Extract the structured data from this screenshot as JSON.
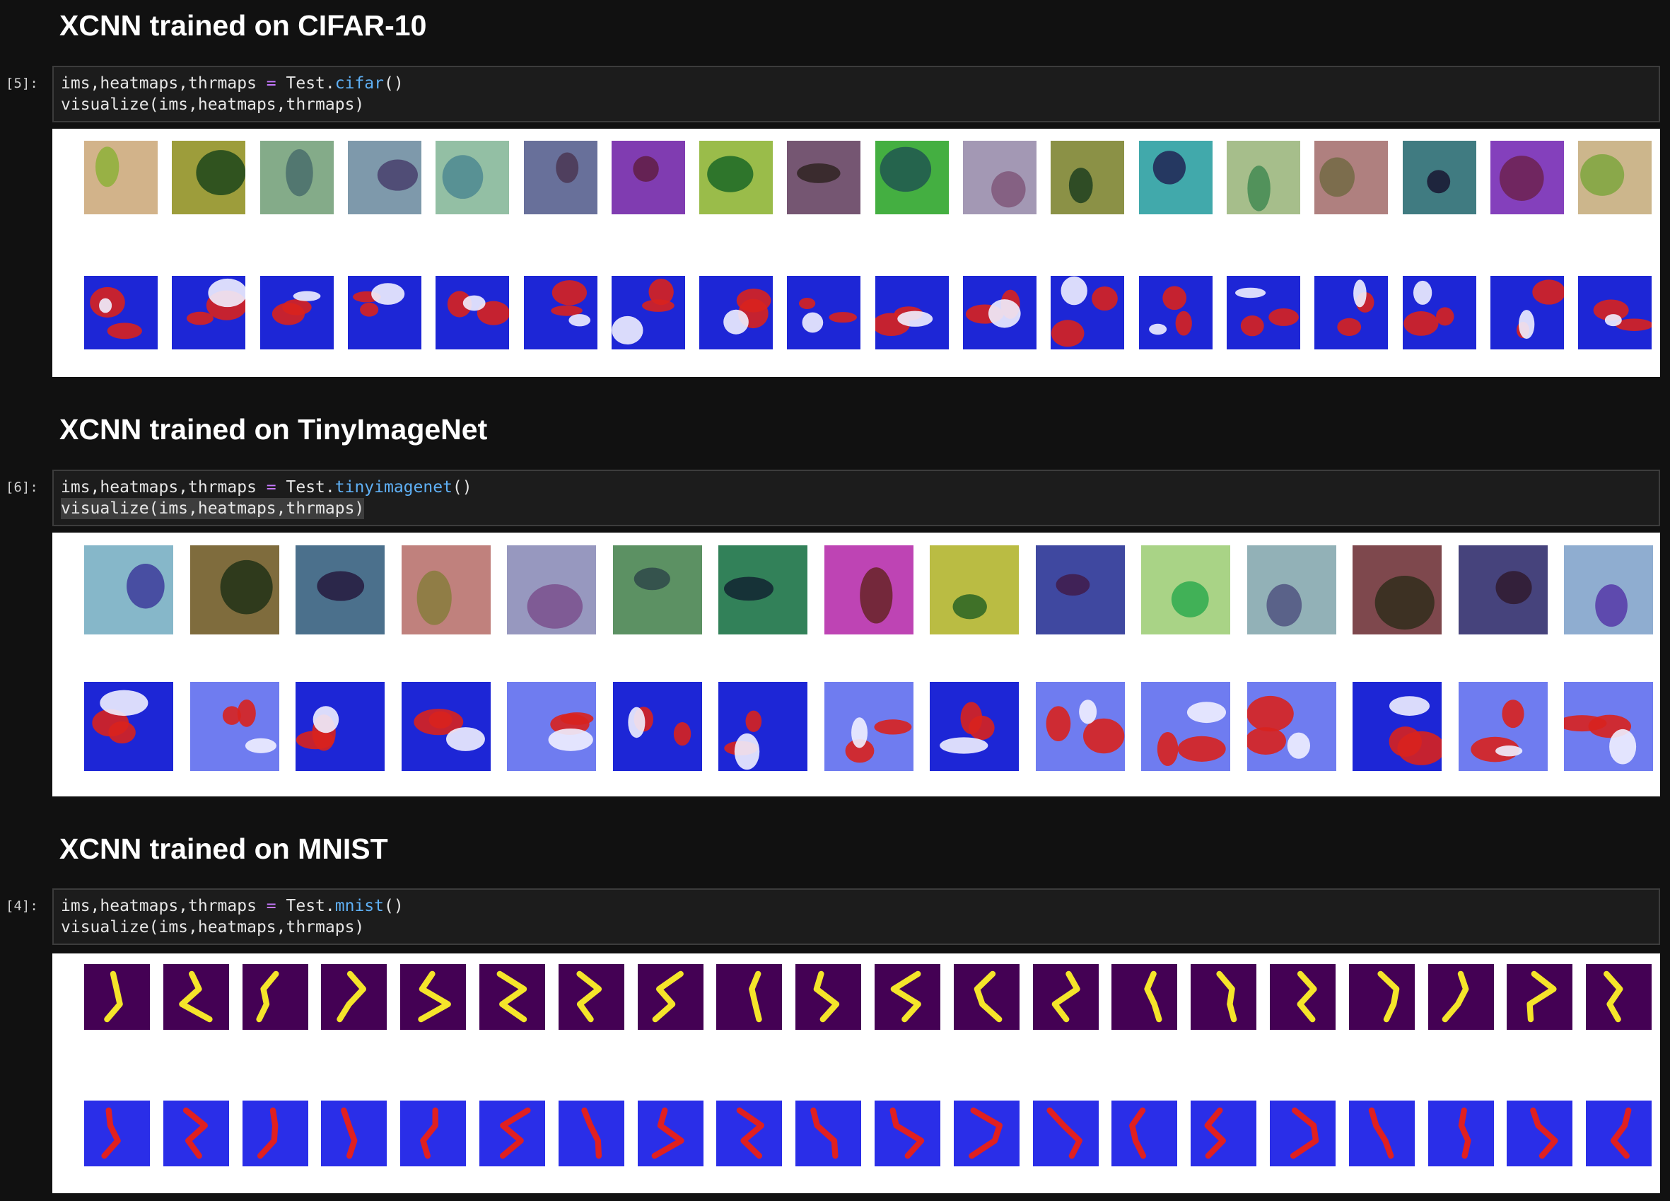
{
  "cells": [
    {
      "heading": "XCNN trained on CIFAR-10",
      "prompt": "[5]:",
      "code": [
        [
          "ims,heatmaps,thrmaps ",
          "=",
          " Test.",
          "cifar",
          "()"
        ],
        [
          "visualize(ims,heatmaps,thrmaps)"
        ]
      ]
    },
    {
      "heading": "XCNN trained on TinyImageNet",
      "prompt": "[6]:",
      "code": [
        [
          "ims,heatmaps,thrmaps ",
          "=",
          " Test.",
          "tinyimagenet",
          "()"
        ],
        [
          "visualize(ims,heatmaps,thrmaps)"
        ]
      ]
    },
    {
      "heading": "XCNN trained on MNIST",
      "prompt": "[4]:",
      "code": [
        [
          "ims,heatmaps,thrmaps ",
          "=",
          " Test.",
          "mnist",
          "()"
        ],
        [
          "visualize(ims,heatmaps,thrmaps)"
        ]
      ]
    }
  ]
}
